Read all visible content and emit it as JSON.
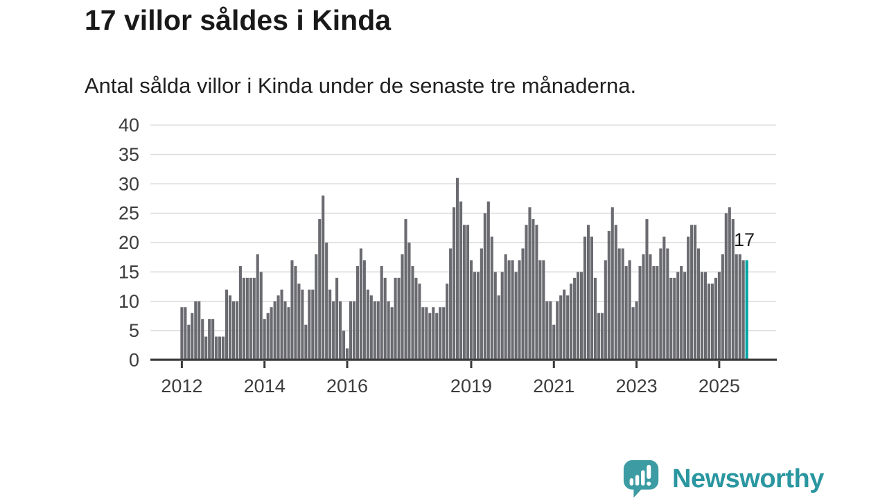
{
  "chart_data": {
    "type": "bar",
    "title": "17 villor såldes i Kinda",
    "subtitle": "Antal sålda villor i Kinda under de senaste tre månaderna.",
    "frequency": "monthly",
    "x_start_month": "2012-01",
    "x_end_month": "2025-09",
    "values": [
      9,
      9,
      6,
      8,
      10,
      10,
      7,
      4,
      7,
      7,
      4,
      4,
      4,
      12,
      11,
      10,
      10,
      16,
      14,
      14,
      14,
      14,
      18,
      15,
      7,
      8,
      9,
      10,
      11,
      12,
      10,
      9,
      17,
      16,
      13,
      12,
      6,
      12,
      12,
      18,
      24,
      28,
      20,
      12,
      10,
      14,
      10,
      5,
      2,
      10,
      10,
      16,
      19,
      17,
      12,
      11,
      10,
      10,
      16,
      14,
      10,
      9,
      14,
      14,
      18,
      24,
      20,
      16,
      14,
      13,
      9,
      9,
      8,
      9,
      8,
      9,
      9,
      13,
      19,
      26,
      31,
      27,
      23,
      23,
      17,
      15,
      15,
      19,
      25,
      27,
      21,
      15,
      11,
      15,
      18,
      17,
      17,
      15,
      17,
      19,
      23,
      26,
      24,
      23,
      17,
      17,
      10,
      10,
      6,
      10,
      11,
      12,
      11,
      13,
      14,
      15,
      15,
      21,
      23,
      21,
      14,
      8,
      8,
      17,
      22,
      26,
      23,
      19,
      19,
      16,
      17,
      9,
      10,
      16,
      18,
      24,
      18,
      16,
      16,
      19,
      21,
      19,
      14,
      14,
      15,
      16,
      15,
      21,
      23,
      23,
      19,
      15,
      15,
      13,
      13,
      14,
      15,
      18,
      25,
      26,
      24,
      18,
      18,
      17,
      17
    ],
    "highlight_index": 164,
    "annotation": {
      "label": "17",
      "applies_to": "last-bar"
    },
    "y_ticks": [
      0,
      5,
      10,
      15,
      20,
      25,
      30,
      35,
      40
    ],
    "x_ticks": [
      2012,
      2014,
      2016,
      2019,
      2021,
      2023,
      2025
    ],
    "ylim": [
      0,
      40
    ],
    "xlabel": "",
    "ylabel": "",
    "grid": "horizontal",
    "legend": "none"
  },
  "footer": {
    "brand": "Newsworthy",
    "logo_icon": "newsworthy-chart-bubble-icon"
  },
  "colors": {
    "background": "#ffffff",
    "bar": "#6a6a71",
    "bar_highlight": "#00a3a4",
    "grid": "#d8d8d8",
    "axis": "#3a3a3a",
    "tick_label": "#3c3c3c",
    "title": "#191919",
    "subtitle": "#202020",
    "annotation": "#191919",
    "brand": "#2a96a0",
    "logo_icon_fill": "#3c9ba3"
  }
}
